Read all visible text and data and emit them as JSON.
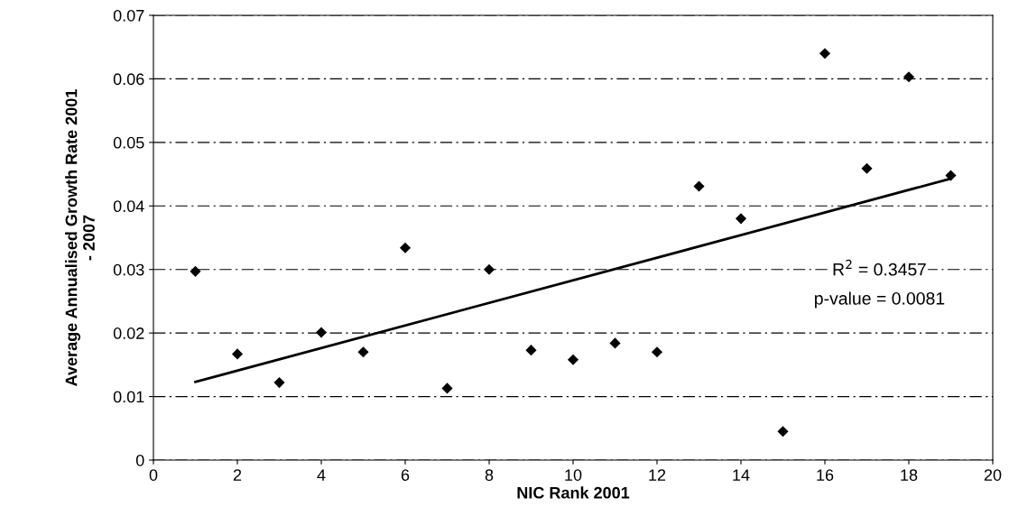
{
  "chart_data": {
    "type": "scatter",
    "xlabel": "NIC Rank 2001",
    "ylabel": "Average Annualised Growth Rate 2001\n- 2007",
    "series": [
      {
        "color": "#000000",
        "marker": "diamond",
        "x": [
          1,
          2,
          3,
          4,
          5,
          6,
          7,
          8,
          9,
          10,
          11,
          12,
          13,
          14,
          15,
          16,
          17,
          18,
          19
        ],
        "values": [
          0.0297,
          0.0167,
          0.0122,
          0.0201,
          0.017,
          0.0334,
          0.0113,
          0.03,
          0.0173,
          0.0158,
          0.0184,
          0.017,
          0.0431,
          0.038,
          0.0045,
          0.064,
          0.0459,
          0.0603,
          0.0448
        ]
      },
      {
        "type": "line",
        "color": "#000000",
        "marker": "none",
        "x": [
          1,
          19
        ],
        "values": [
          0.0123,
          0.0443
        ]
      }
    ],
    "annotations": [
      "R$^{2}$ = 0.3457",
      "p-value = 0.0081"
    ],
    "xlim": [
      0,
      20
    ],
    "xticks": [
      0,
      2,
      4,
      6,
      8,
      10,
      12,
      14,
      16,
      18,
      20
    ],
    "ylim": [
      0,
      0.07
    ],
    "yticks": [
      0,
      0.01,
      0.02,
      0.03,
      0.04,
      0.05,
      0.06,
      0.07
    ],
    "grid": "y",
    "legend": false
  }
}
